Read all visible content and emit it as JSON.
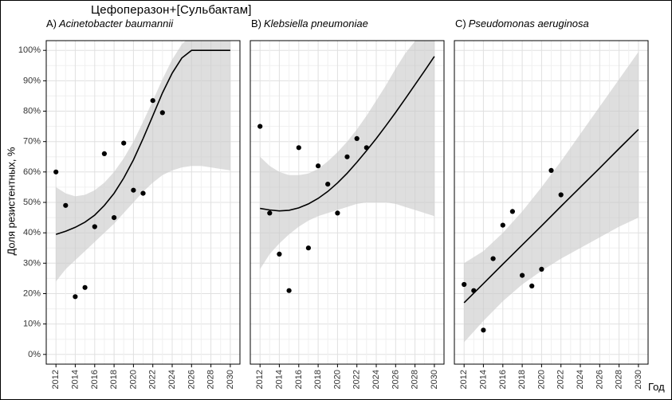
{
  "title": "Цефоперазон+[Сульбактам]",
  "axes": {
    "ylabel": "Доля резистентных, %",
    "xlabel": "Год",
    "y_tick_values": [
      0,
      10,
      20,
      30,
      40,
      50,
      60,
      70,
      80,
      90,
      100
    ],
    "y_tick_labels": [
      "0%",
      "10%",
      "20%",
      "30%",
      "40%",
      "50%",
      "60%",
      "70%",
      "80%",
      "90%",
      "100%"
    ],
    "x_tick_values": [
      2012,
      2014,
      2016,
      2018,
      2020,
      2022,
      2024,
      2026,
      2028,
      2030
    ],
    "x_tick_labels": [
      "2012",
      "2014",
      "2016",
      "2018",
      "2020",
      "2022",
      "2024",
      "2026",
      "2028",
      "2030"
    ]
  },
  "colors": {
    "background": "#ffffff",
    "frame": "#000000",
    "grid_major": "#e0e0e0",
    "grid_minor": "#f0f0f0",
    "band": "#c9c9c9",
    "line": "#000000",
    "point": "#000000",
    "text": "#000000"
  },
  "chart_data": [
    {
      "type": "scatter",
      "panel_label": "A)",
      "species": "Acinetobacter baumannii",
      "xlim": [
        2011,
        2031
      ],
      "ylim": [
        0,
        100
      ],
      "points": {
        "x": [
          2012,
          2013,
          2014,
          2015,
          2016,
          2017,
          2018,
          2019,
          2020,
          2021,
          2022,
          2023
        ],
        "y": [
          60,
          49,
          19,
          22,
          42,
          66,
          45,
          69.5,
          54,
          53,
          83.5,
          79.5
        ]
      },
      "trend": {
        "x": [
          2012,
          2013,
          2014,
          2015,
          2016,
          2017,
          2018,
          2019,
          2020,
          2021,
          2022,
          2023,
          2024,
          2025,
          2026,
          2027,
          2028,
          2029,
          2030
        ],
        "y": [
          39.5,
          40.5,
          41.8,
          43.5,
          45.8,
          49,
          53,
          58,
          64,
          71,
          78.5,
          86,
          92.5,
          97.5,
          100,
          100,
          100,
          100,
          100
        ]
      },
      "band": {
        "x": [
          2012,
          2013,
          2014,
          2015,
          2016,
          2017,
          2018,
          2019,
          2020,
          2021,
          2022,
          2023,
          2024,
          2025,
          2026,
          2027,
          2028,
          2029,
          2030
        ],
        "lower": [
          24,
          28,
          31,
          34,
          37,
          40,
          43,
          46.5,
          50,
          53.5,
          56.5,
          59,
          60.5,
          61.5,
          62,
          62,
          61.5,
          61,
          60.5
        ],
        "upper": [
          55,
          53,
          52,
          52.5,
          54,
          56.5,
          60,
          64.5,
          70,
          76.5,
          83.5,
          90.5,
          97,
          102,
          105,
          105,
          105,
          105,
          105
        ]
      }
    },
    {
      "type": "scatter",
      "panel_label": "B)",
      "species": "Klebsiella pneumoniae",
      "xlim": [
        2011,
        2031
      ],
      "ylim": [
        0,
        100
      ],
      "points": {
        "x": [
          2012,
          2013,
          2014,
          2015,
          2016,
          2017,
          2018,
          2019,
          2020,
          2021,
          2022,
          2023
        ],
        "y": [
          75,
          46.5,
          33,
          21,
          68,
          35,
          62,
          56,
          46.5,
          65,
          71,
          68
        ]
      },
      "trend": {
        "x": [
          2012,
          2013,
          2014,
          2015,
          2016,
          2017,
          2018,
          2019,
          2020,
          2021,
          2022,
          2023,
          2024,
          2025,
          2026,
          2027,
          2028,
          2029,
          2030
        ],
        "y": [
          48,
          47.5,
          47.2,
          47.4,
          48.2,
          49.5,
          51.3,
          53.6,
          56.4,
          59.6,
          63.2,
          67,
          71,
          75.2,
          79.6,
          84.1,
          88.7,
          93.3,
          98
        ]
      },
      "band": {
        "x": [
          2012,
          2013,
          2014,
          2015,
          2016,
          2017,
          2018,
          2019,
          2020,
          2021,
          2022,
          2023,
          2024,
          2025,
          2026,
          2027,
          2028,
          2029,
          2030
        ],
        "lower": [
          28,
          33,
          36.5,
          39.5,
          42,
          44,
          45.5,
          46.5,
          47.5,
          48.5,
          49.5,
          50,
          50,
          50,
          49.5,
          48.5,
          47.5,
          46.5,
          45.5
        ],
        "upper": [
          65,
          62,
          60,
          59,
          59,
          59.5,
          61,
          63.5,
          66.5,
          70,
          74,
          78.5,
          83.5,
          88.5,
          94,
          99,
          103,
          105,
          105
        ]
      }
    },
    {
      "type": "scatter",
      "panel_label": "C)",
      "species": "Pseudomonas aeruginosa",
      "xlim": [
        2011,
        2031
      ],
      "ylim": [
        0,
        100
      ],
      "points": {
        "x": [
          2012,
          2013,
          2014,
          2015,
          2016,
          2017,
          2018,
          2019,
          2020,
          2021,
          2022
        ],
        "y": [
          23,
          21,
          8,
          31.5,
          42.5,
          47,
          26,
          22.5,
          28,
          60.5,
          52.5
        ]
      },
      "trend": {
        "x": [
          2012,
          2014,
          2016,
          2018,
          2020,
          2022,
          2024,
          2026,
          2028,
          2030
        ],
        "y": [
          17,
          23.3,
          29.7,
          36,
          42.3,
          48.7,
          55,
          61.3,
          67.7,
          74
        ]
      },
      "band": {
        "x": [
          2012,
          2014,
          2016,
          2018,
          2020,
          2022,
          2024,
          2026,
          2028,
          2030
        ],
        "lower": [
          4,
          11,
          17.5,
          23,
          27.5,
          31.5,
          35,
          38.5,
          42,
          45
        ],
        "upper": [
          30,
          34,
          40,
          47,
          55,
          63.5,
          72.5,
          81.5,
          90.5,
          99.5
        ]
      }
    }
  ]
}
